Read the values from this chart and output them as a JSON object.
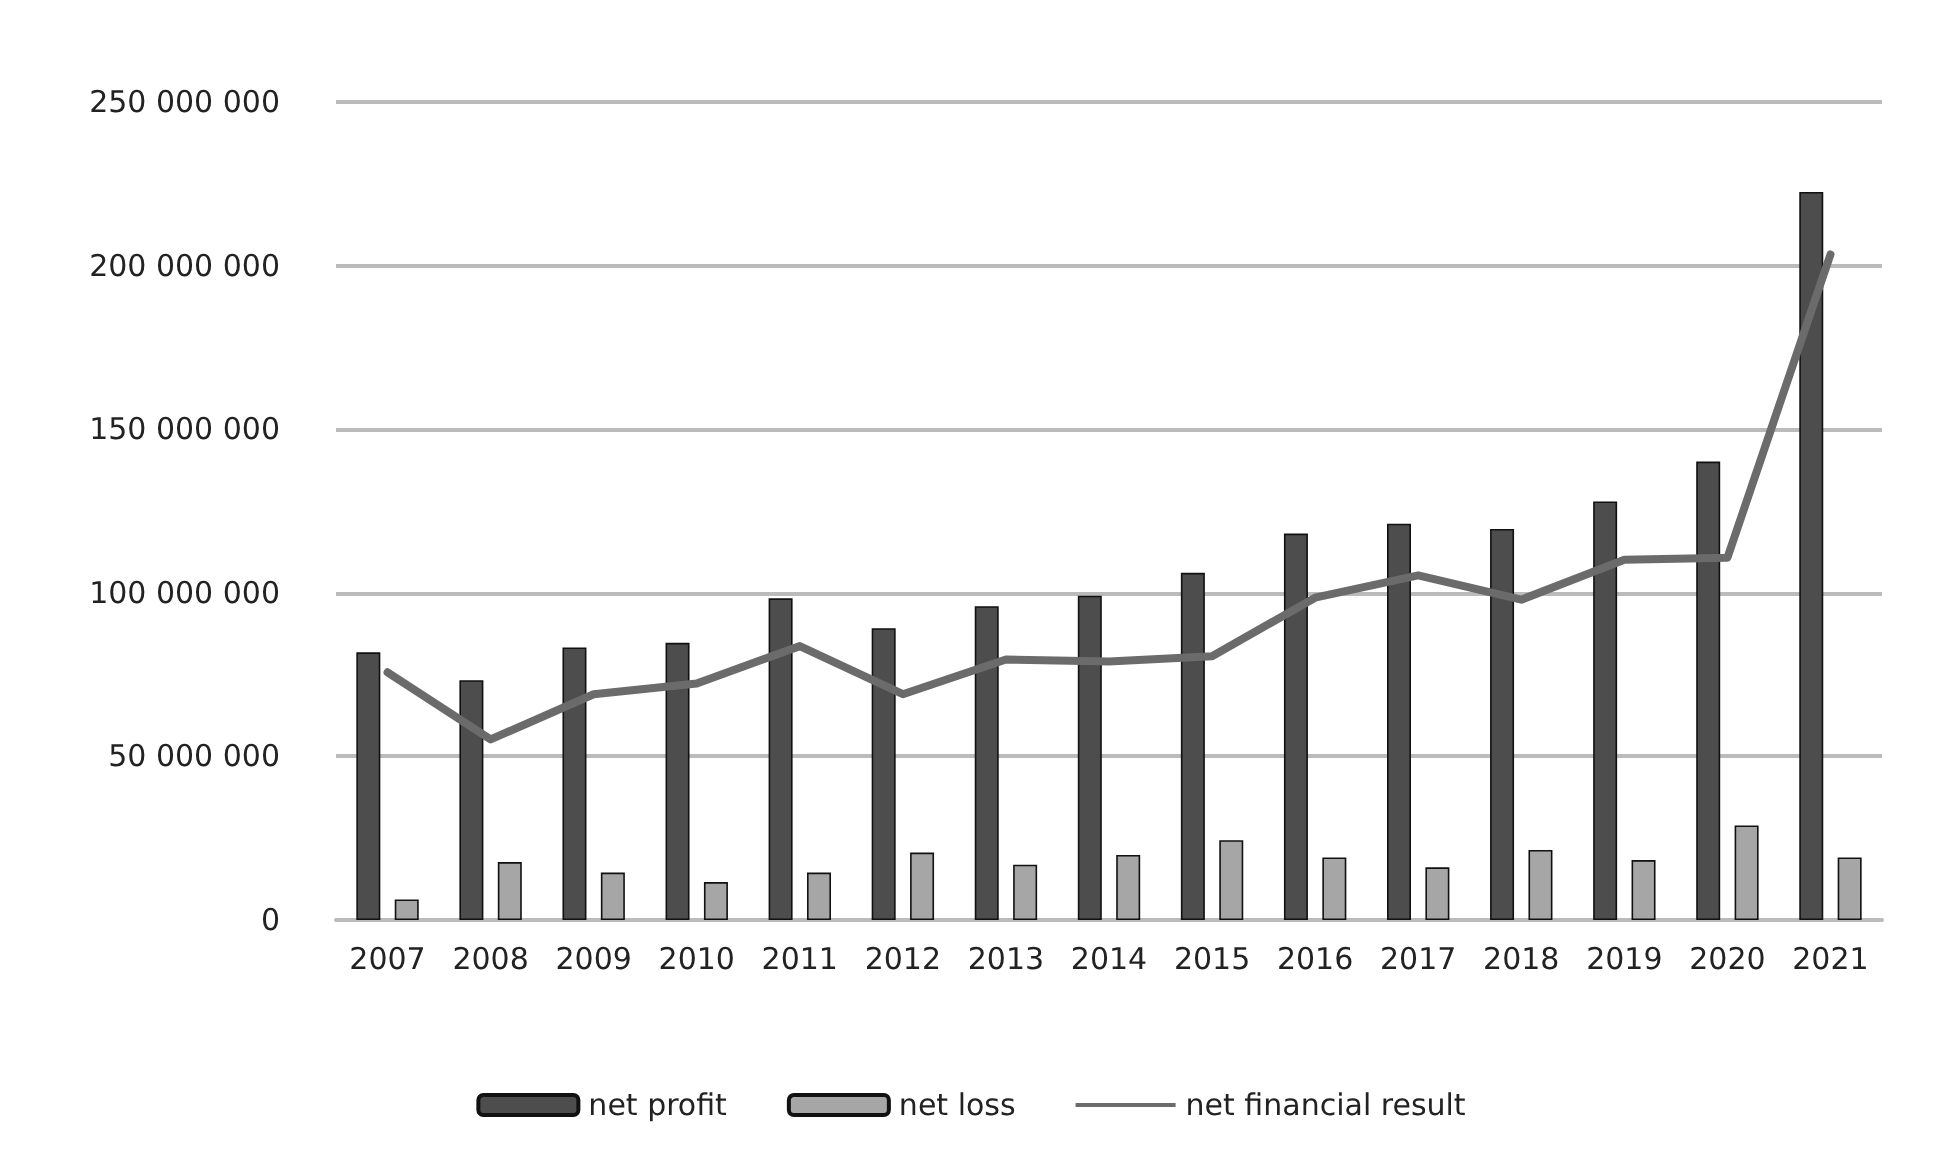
{
  "chart_data": {
    "type": "bar",
    "categories": [
      "2007",
      "2008",
      "2009",
      "2010",
      "2011",
      "2012",
      "2013",
      "2014",
      "2015",
      "2016",
      "2017",
      "2018",
      "2019",
      "2020",
      "2021"
    ],
    "series": [
      {
        "name": "net profit",
        "color": "#4d4d4d",
        "values": [
          81800000,
          73300000,
          83300000,
          84700000,
          98300000,
          89200000,
          95900000,
          99100000,
          106100000,
          118100000,
          121100000,
          119500000,
          127900000,
          140100000,
          222500000
        ]
      },
      {
        "name": "net loss",
        "color": "#a6a6a6",
        "values": [
          6300000,
          17700000,
          14500000,
          11600000,
          14500000,
          20600000,
          16900000,
          19900000,
          24400000,
          19100000,
          16100000,
          21400000,
          18300000,
          28900000,
          19100000
        ]
      },
      {
        "name": "net financial result",
        "type": "line",
        "color": "#6b6b6b",
        "values": [
          75700000,
          55200000,
          69000000,
          72300000,
          83700000,
          69000000,
          79600000,
          79000000,
          80600000,
          98500000,
          105300000,
          97900000,
          110100000,
          110700000,
          203400000
        ]
      }
    ],
    "ylim": [
      0,
      250000000
    ],
    "yticks": [
      0,
      {
        "value": 50000000,
        "label": "50 000 000"
      },
      {
        "value": 100000000,
        "label": "100 000 000"
      },
      {
        "value": 150000000,
        "label": "150 000 000"
      },
      {
        "value": 200000000,
        "label": "200 000 000"
      },
      {
        "value": 250000000,
        "label": "250 000 000"
      }
    ],
    "grid": "y",
    "legend": "bottom",
    "marker": "none",
    "line_style": "solid"
  }
}
